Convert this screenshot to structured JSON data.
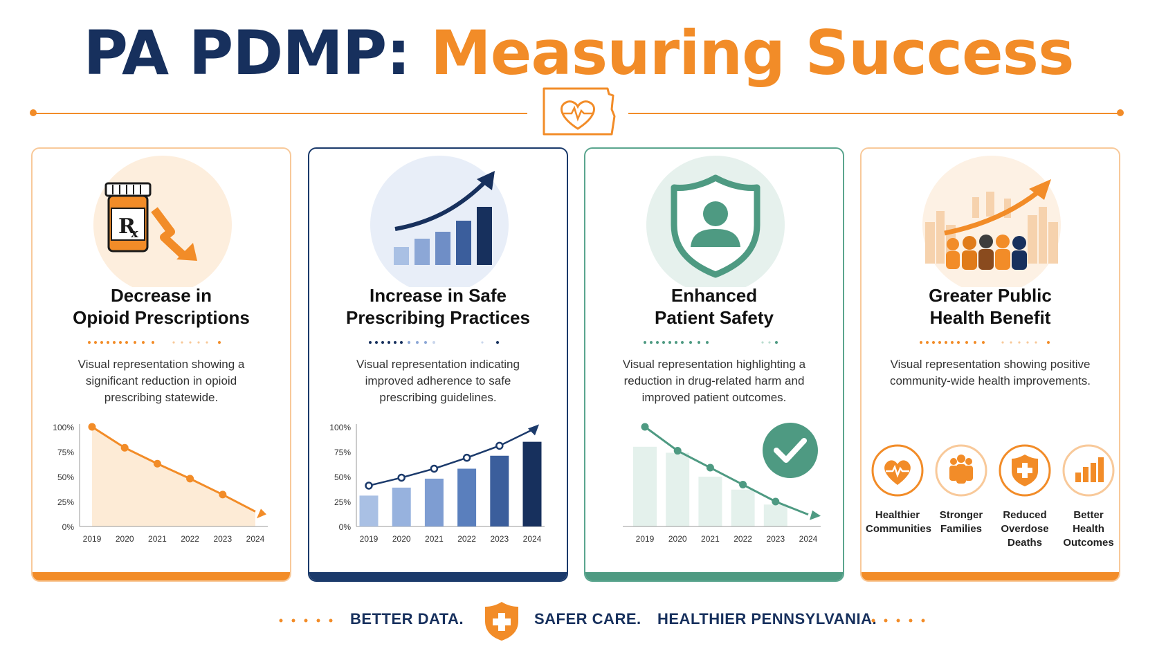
{
  "title": {
    "part1": "PA PDMP:",
    "part2": "Measuring Success"
  },
  "colors": {
    "navy": "#17305d",
    "orange": "#f28c28",
    "green": "#4e9a82",
    "blue_light": "#a9c0e4",
    "blue_dark": "#1b3a6b"
  },
  "cards": [
    {
      "heading": "Decrease in Opioid Prescriptions",
      "heading_line1": "Decrease in",
      "heading_line2": "Opioid Prescriptions",
      "description": "Visual representation showing a significant reduction in opioid prescribing statewide.",
      "icon": "rx-bottle-down-arrow-icon"
    },
    {
      "heading": "Increase in Safe Prescribing Practices",
      "heading_line1": "Increase in Safe",
      "heading_line2": "Prescribing Practices",
      "description": "Visual representation indicating improved adherence to safe prescribing guidelines.",
      "icon": "growth-bar-chart-icon"
    },
    {
      "heading": "Enhanced Patient Safety",
      "heading_line1": "Enhanced",
      "heading_line2": "Patient Safety",
      "description": "Visual representation highlighting a reduction in drug-related harm and improved patient outcomes.",
      "icon": "shield-person-icon"
    },
    {
      "heading": "Greater Public Health Benefit",
      "heading_line1": "Greater Public",
      "heading_line2": "Health Benefit",
      "description": "Visual representation showing positive community-wide health improvements.",
      "icon": "community-growth-icon"
    }
  ],
  "benefits": [
    {
      "label_lines": [
        "Healthier",
        "Communities"
      ],
      "icon": "heart-pulse-icon"
    },
    {
      "label_lines": [
        "Stronger",
        "Families"
      ],
      "icon": "family-icon"
    },
    {
      "label_lines": [
        "Reduced",
        "Overdose",
        "Deaths"
      ],
      "icon": "shield-cross-icon"
    },
    {
      "label_lines": [
        "Better",
        "Health",
        "Outcomes"
      ],
      "icon": "bar-chart-icon"
    }
  ],
  "footer": {
    "part1": "BETTER DATA.",
    "part2": "SAFER CARE.",
    "part3": "HEALTHIER PENNSYLVANIA."
  },
  "chart_data": [
    {
      "type": "area",
      "categories": [
        "2019",
        "2020",
        "2021",
        "2022",
        "2023",
        "2024"
      ],
      "values": [
        100,
        79,
        63,
        48,
        32,
        15
      ],
      "ytick_labels": [
        "0%",
        "25%",
        "50%",
        "75%",
        "100%"
      ],
      "ylim": [
        0,
        100
      ],
      "color": "#f28c28"
    },
    {
      "type": "bar",
      "categories": [
        "2019",
        "2020",
        "2021",
        "2022",
        "2023",
        "2024"
      ],
      "series": [
        {
          "values": [
            31,
            39,
            48,
            58,
            71,
            85
          ]
        },
        {
          "values": [
            41,
            49,
            58,
            69,
            81,
            97
          ],
          "style": "line"
        }
      ],
      "ytick_labels": [
        "0%",
        "25%",
        "50%",
        "75%",
        "100%"
      ],
      "ylim": [
        0,
        100
      ],
      "color": "#1b3a6b"
    },
    {
      "type": "line",
      "categories": [
        "2019",
        "2020",
        "2021",
        "2022",
        "2023",
        "2024"
      ],
      "values": [
        100,
        76,
        59,
        42,
        25,
        12
      ],
      "bars": [
        80,
        74,
        50,
        37,
        22,
        0
      ],
      "color": "#4e9a82",
      "badge": "check-icon"
    }
  ]
}
